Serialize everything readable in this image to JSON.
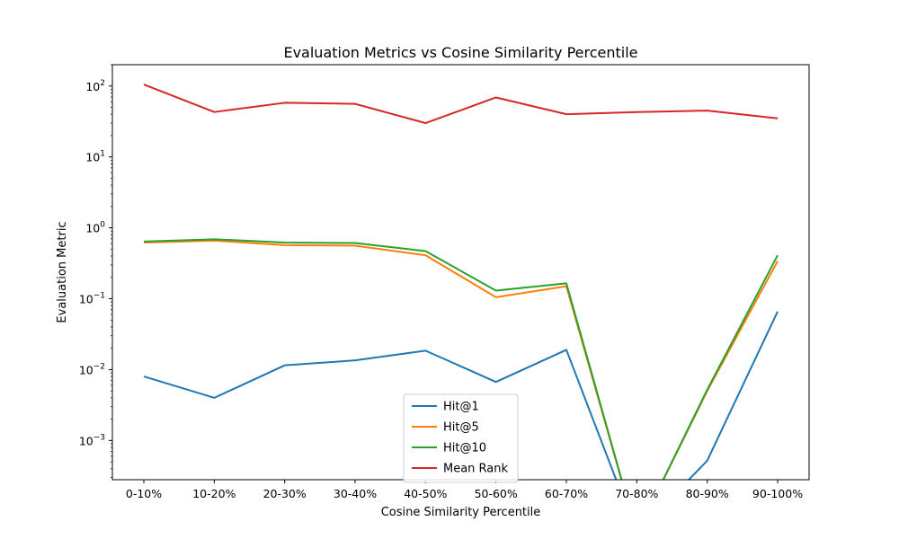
{
  "chart_data": {
    "type": "line",
    "title": "Evaluation Metrics vs Cosine Similarity Percentile",
    "xlabel": "Cosine Similarity Percentile",
    "ylabel": "Evaluation Metric",
    "yscale": "log",
    "ylim": [
      0.00028,
      200
    ],
    "y_tick_labels": [
      "10^-3",
      "10^-2",
      "10^-1",
      "10^0",
      "10^1",
      "10^2"
    ],
    "grid": false,
    "legend_position": "lower center",
    "categories": [
      "0-10%",
      "10-20%",
      "20-30%",
      "30-40%",
      "40-50%",
      "50-60%",
      "60-70%",
      "70-80%",
      "80-90%",
      "90-100%"
    ],
    "series": [
      {
        "name": "Hit@1",
        "color": "#1f77b4",
        "values": [
          0.008,
          0.004,
          0.0115,
          0.0135,
          0.0185,
          0.0067,
          0.019,
          0,
          0.00052,
          0.066
        ]
      },
      {
        "name": "Hit@5",
        "color": "#ff7f0e",
        "values": [
          0.62,
          0.66,
          0.57,
          0.56,
          0.41,
          0.105,
          0.15,
          0,
          0.005,
          0.34
        ]
      },
      {
        "name": "Hit@10",
        "color": "#2ca02c",
        "values": [
          0.64,
          0.69,
          0.62,
          0.61,
          0.47,
          0.13,
          0.165,
          0,
          0.0052,
          0.41
        ]
      },
      {
        "name": "Mean Rank",
        "color": "#d62728",
        "values": [
          105,
          43,
          58,
          56,
          30,
          69,
          40,
          43,
          45,
          35
        ]
      }
    ]
  }
}
